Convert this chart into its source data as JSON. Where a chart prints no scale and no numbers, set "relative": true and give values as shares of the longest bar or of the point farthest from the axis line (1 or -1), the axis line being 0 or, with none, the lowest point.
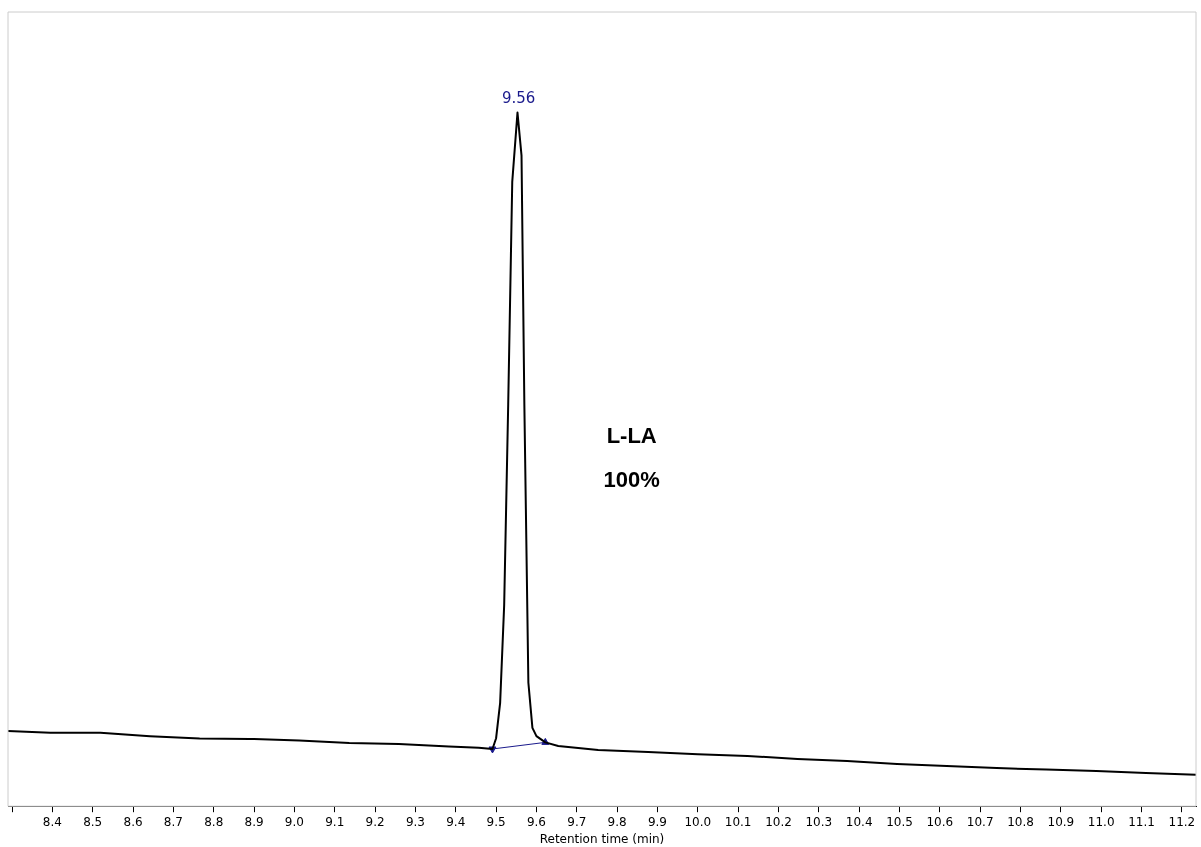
{
  "chart_data": {
    "type": "line",
    "relative": true,
    "xlabel": "Retention time (min)",
    "xlim": [
      8.29,
      11.235
    ],
    "xticks": [
      {
        "value": 8.3,
        "label": null
      },
      8.4,
      8.5,
      8.6,
      8.7,
      8.8,
      8.9,
      {
        "value": 9,
        "label": "9.0"
      },
      9.1,
      9.2,
      9.3,
      9.4,
      9.5,
      9.6,
      9.7,
      9.8,
      9.9,
      {
        "value": 10,
        "label": "10.0"
      },
      10.1,
      10.2,
      10.3,
      10.4,
      10.5,
      10.6,
      10.7,
      10.8,
      10.9,
      {
        "value": 11,
        "label": "11.0"
      },
      11.1,
      11.2
    ],
    "grid": false,
    "legend": false,
    "marker": "none",
    "line_style": "solid",
    "series": [
      {
        "color": "#000000",
        "x": [
          8.29,
          8.395,
          8.519,
          8.642,
          8.765,
          8.889,
          9.012,
          9.136,
          9.259,
          9.383,
          9.457,
          9.491,
          9.5,
          9.51,
          9.52,
          9.53,
          9.54,
          9.553,
          9.563,
          9.57,
          9.58,
          9.59,
          9.6,
          9.622,
          9.654,
          9.753,
          9.877,
          10.0,
          10.123,
          10.247,
          10.37,
          10.494,
          10.617,
          10.741,
          10.864,
          10.988,
          11.111,
          11.235
        ],
        "values": [
          0.1085,
          0.106,
          0.106,
          0.101,
          0.0975,
          0.097,
          0.0948,
          0.091,
          0.0897,
          0.086,
          0.0842,
          0.0825,
          0.098,
          0.149,
          0.29,
          0.58,
          0.9,
          1,
          0.938,
          0.58,
          0.178,
          0.113,
          0.101,
          0.092,
          0.0868,
          0.081,
          0.078,
          0.0749,
          0.0724,
          0.068,
          0.0651,
          0.0608,
          0.0579,
          0.055,
          0.0528,
          0.0506,
          0.0478,
          0.0454
        ]
      },
      {
        "color": "#1a1a8c",
        "marker": "triangle",
        "x": [
          9.491,
          9.622
        ],
        "values": [
          0.0825,
          0.092
        ]
      }
    ],
    "annotations": [
      {
        "text": "9.56",
        "x": 9.556,
        "y": 1
      },
      "L-LA",
      "100%"
    ]
  }
}
